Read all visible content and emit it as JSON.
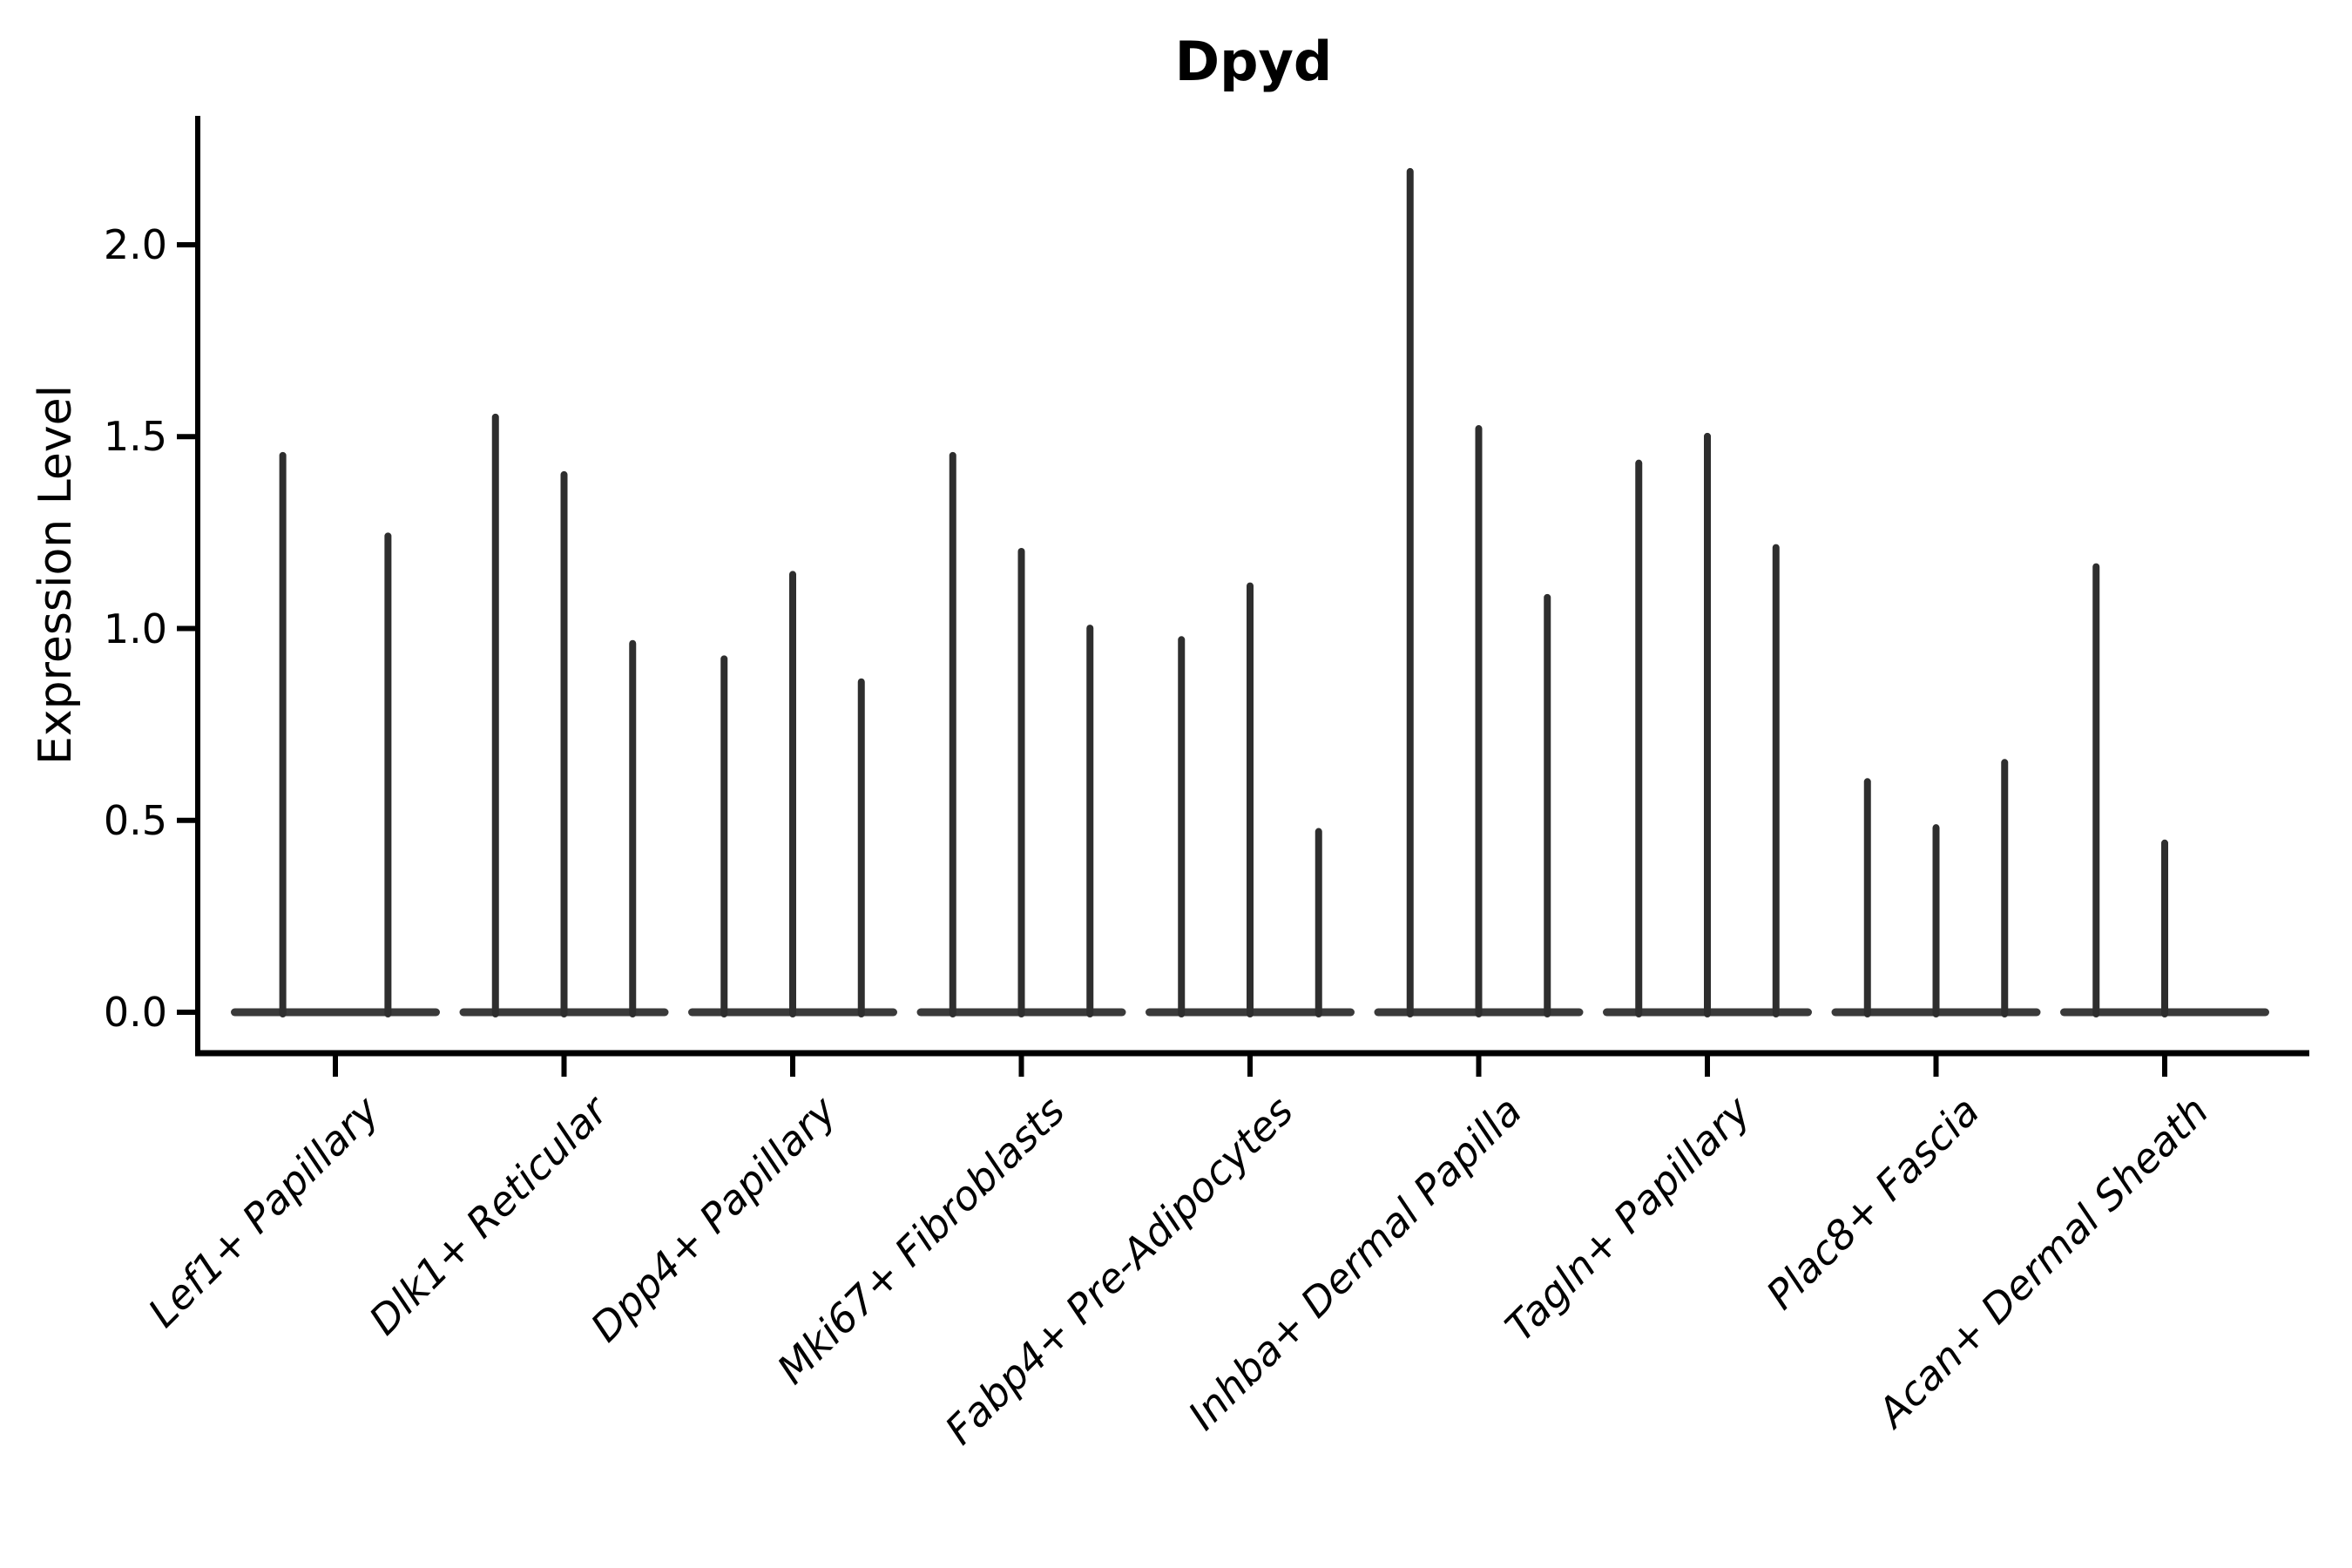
{
  "title": "Dpyd",
  "axes": {
    "y_label": "Expression Level",
    "y_tick_labels": [
      "0.0",
      "0.5",
      "1.0",
      "1.5",
      "2.0"
    ]
  },
  "chart_data": {
    "type": "violin",
    "title": "Dpyd",
    "xlabel": "",
    "ylabel": "Expression Level",
    "ylim": [
      -0.11,
      2.35
    ],
    "yticks": [
      0.0,
      0.5,
      1.0,
      1.5,
      2.0
    ],
    "grid": false,
    "legend": "none",
    "description": "Violin plot of Dpyd expression; violins are collapsed to thin spikes rising from a flat base at 0, two or three split violins per cell-type group.",
    "categories": [
      "Lef1+ Papillary",
      "Dlk1+ Reticular",
      "Dpp4+ Papillary",
      "Mki67+ Fibroblasts",
      "Fabp4+ Pre-Adipocytes",
      "Inhba+ Dermal Papilla",
      "Tagln+ Papillary",
      "Plac8+ Fascia",
      "Acan+ Dermal Sheath"
    ],
    "groups": [
      {
        "category": "Lef1+ Papillary",
        "violins": [
          {
            "offset": -0.23,
            "max": 1.46
          },
          {
            "offset": 0.23,
            "max": 1.25
          }
        ]
      },
      {
        "category": "Dlk1+ Reticular",
        "violins": [
          {
            "offset": -0.3,
            "max": 1.56
          },
          {
            "offset": 0.0,
            "max": 1.41
          },
          {
            "offset": 0.3,
            "max": 0.97
          }
        ]
      },
      {
        "category": "Dpp4+ Papillary",
        "violins": [
          {
            "offset": -0.3,
            "max": 0.93
          },
          {
            "offset": 0.0,
            "max": 1.15
          },
          {
            "offset": 0.3,
            "max": 0.87
          }
        ]
      },
      {
        "category": "Mki67+ Fibroblasts",
        "violins": [
          {
            "offset": -0.3,
            "max": 1.46
          },
          {
            "offset": 0.0,
            "max": 1.21
          },
          {
            "offset": 0.3,
            "max": 1.01
          }
        ]
      },
      {
        "category": "Fabp4+ Pre-Adipocytes",
        "violins": [
          {
            "offset": -0.3,
            "max": 0.98
          },
          {
            "offset": 0.0,
            "max": 1.12
          },
          {
            "offset": 0.3,
            "max": 0.48
          }
        ]
      },
      {
        "category": "Inhba+ Dermal Papilla",
        "violins": [
          {
            "offset": -0.3,
            "max": 2.2
          },
          {
            "offset": 0.0,
            "max": 1.53
          },
          {
            "offset": 0.3,
            "max": 1.09
          }
        ]
      },
      {
        "category": "Tagln+ Papillary",
        "violins": [
          {
            "offset": -0.3,
            "max": 1.44
          },
          {
            "offset": 0.0,
            "max": 1.51
          },
          {
            "offset": 0.3,
            "max": 1.22
          }
        ]
      },
      {
        "category": "Plac8+ Fascia",
        "violins": [
          {
            "offset": -0.3,
            "max": 0.61
          },
          {
            "offset": 0.0,
            "max": 0.49
          },
          {
            "offset": 0.3,
            "max": 0.66
          }
        ]
      },
      {
        "category": "Acan+ Dermal Sheath",
        "violins": [
          {
            "offset": -0.3,
            "max": 1.17
          },
          {
            "offset": 0.0,
            "max": 0.45
          }
        ]
      }
    ],
    "base_value": 0.0,
    "colors": {
      "violin": "#2e2e2e",
      "base_band": "#3a3a3a",
      "spine": "#000000",
      "text": "#000000",
      "background": "#ffffff"
    }
  }
}
